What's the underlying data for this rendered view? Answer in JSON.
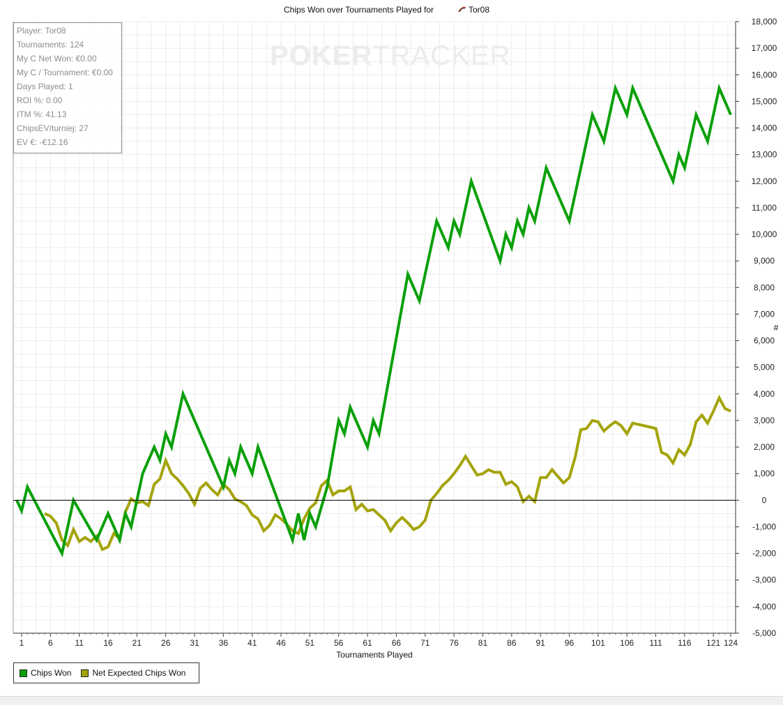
{
  "chart_data": {
    "type": "line",
    "title": "Chips Won over Tournaments Played for",
    "title_player": "Tor08",
    "xlabel": "Tournaments Played",
    "ylabel": "#",
    "xlim": [
      1,
      124
    ],
    "ylim": [
      -5000,
      18000
    ],
    "x_ticks": [
      1,
      6,
      11,
      16,
      21,
      26,
      31,
      36,
      41,
      46,
      51,
      56,
      61,
      66,
      71,
      76,
      81,
      86,
      91,
      96,
      101,
      106,
      111,
      116,
      121,
      124
    ],
    "y_ticks": [
      -5000,
      -4000,
      -3000,
      -2000,
      -1000,
      0,
      1000,
      2000,
      3000,
      4000,
      5000,
      6000,
      7000,
      8000,
      9000,
      10000,
      11000,
      12000,
      13000,
      14000,
      15000,
      16000,
      17000,
      18000
    ],
    "y_tick_labels": [
      "-5,000",
      "-4,000",
      "-3,000",
      "-2,000",
      "-1,000",
      "0",
      "1,000",
      "2,000",
      "3,000",
      "4,000",
      "5,000",
      "6,000",
      "7,000",
      "8,000",
      "9,000",
      "10,000",
      "11,000",
      "12,000",
      "13,000",
      "14,000",
      "15,000",
      "16,000",
      "17,000",
      "18,000"
    ],
    "grid": true,
    "legend_position": "bottom-left",
    "series": [
      {
        "name": "Chips Won",
        "color": "#0aa00a",
        "points": [
          [
            0,
            0
          ],
          [
            1,
            -400
          ],
          [
            2,
            500
          ],
          [
            8,
            -2000
          ],
          [
            10,
            0
          ],
          [
            14,
            -1500
          ],
          [
            16,
            -500
          ],
          [
            18,
            -1500
          ],
          [
            19,
            -500
          ],
          [
            20,
            -1000
          ],
          [
            22,
            1000
          ],
          [
            24,
            2000
          ],
          [
            25,
            1500
          ],
          [
            26,
            2500
          ],
          [
            27,
            2000
          ],
          [
            29,
            4000
          ],
          [
            36,
            500
          ],
          [
            37,
            1500
          ],
          [
            38,
            1000
          ],
          [
            39,
            2000
          ],
          [
            40,
            1500
          ],
          [
            41,
            1000
          ],
          [
            42,
            2000
          ],
          [
            48,
            -1500
          ],
          [
            49,
            -500
          ],
          [
            50,
            -1500
          ],
          [
            51,
            -500
          ],
          [
            52,
            -1000
          ],
          [
            54,
            500
          ],
          [
            56,
            3000
          ],
          [
            57,
            2500
          ],
          [
            58,
            3500
          ],
          [
            61,
            2000
          ],
          [
            62,
            3000
          ],
          [
            63,
            2500
          ],
          [
            68,
            8500
          ],
          [
            70,
            7500
          ],
          [
            73,
            10500
          ],
          [
            75,
            9500
          ],
          [
            76,
            10500
          ],
          [
            77,
            10000
          ],
          [
            79,
            12000
          ],
          [
            84,
            9000
          ],
          [
            85,
            10000
          ],
          [
            86,
            9500
          ],
          [
            87,
            10500
          ],
          [
            88,
            10000
          ],
          [
            89,
            11000
          ],
          [
            90,
            10500
          ],
          [
            92,
            12500
          ],
          [
            96,
            10500
          ],
          [
            100,
            14500
          ],
          [
            102,
            13500
          ],
          [
            104,
            15500
          ],
          [
            106,
            14500
          ],
          [
            107,
            15500
          ],
          [
            114,
            12000
          ],
          [
            115,
            13000
          ],
          [
            116,
            12500
          ],
          [
            118,
            14500
          ],
          [
            120,
            13500
          ],
          [
            122,
            15500
          ],
          [
            124,
            14500
          ]
        ]
      },
      {
        "name": "Net Expected Chips Won",
        "color": "#a4a40c",
        "points": [
          [
            5,
            -500
          ],
          [
            6,
            -600
          ],
          [
            7,
            -850
          ],
          [
            8,
            -1500
          ],
          [
            9,
            -1700
          ],
          [
            10,
            -1100
          ],
          [
            11,
            -1550
          ],
          [
            12,
            -1400
          ],
          [
            13,
            -1550
          ],
          [
            14,
            -1350
          ],
          [
            15,
            -1850
          ],
          [
            16,
            -1750
          ],
          [
            17,
            -1250
          ],
          [
            18,
            -1450
          ],
          [
            19,
            -450
          ],
          [
            20,
            50
          ],
          [
            21,
            -100
          ],
          [
            22,
            -50
          ],
          [
            23,
            -200
          ],
          [
            24,
            600
          ],
          [
            25,
            800
          ],
          [
            26,
            1500
          ],
          [
            27,
            1000
          ],
          [
            28,
            800
          ],
          [
            29,
            550
          ],
          [
            30,
            250
          ],
          [
            31,
            -150
          ],
          [
            32,
            450
          ],
          [
            33,
            650
          ],
          [
            34,
            400
          ],
          [
            35,
            200
          ],
          [
            36,
            600
          ],
          [
            37,
            400
          ],
          [
            38,
            50
          ],
          [
            39,
            -50
          ],
          [
            40,
            -200
          ],
          [
            41,
            -550
          ],
          [
            42,
            -700
          ],
          [
            43,
            -1150
          ],
          [
            44,
            -950
          ],
          [
            45,
            -550
          ],
          [
            46,
            -700
          ],
          [
            47,
            -900
          ],
          [
            48,
            -1150
          ],
          [
            49,
            -1250
          ],
          [
            50,
            -700
          ],
          [
            51,
            -300
          ],
          [
            52,
            -100
          ],
          [
            53,
            550
          ],
          [
            54,
            750
          ],
          [
            55,
            200
          ],
          [
            56,
            350
          ],
          [
            57,
            350
          ],
          [
            58,
            500
          ],
          [
            59,
            -350
          ],
          [
            60,
            -150
          ],
          [
            61,
            -400
          ],
          [
            62,
            -350
          ],
          [
            63,
            -550
          ],
          [
            64,
            -750
          ],
          [
            65,
            -1150
          ],
          [
            66,
            -850
          ],
          [
            67,
            -650
          ],
          [
            68,
            -850
          ],
          [
            69,
            -1100
          ],
          [
            70,
            -1000
          ],
          [
            71,
            -750
          ],
          [
            72,
            0
          ],
          [
            73,
            250
          ],
          [
            74,
            550
          ],
          [
            75,
            750
          ],
          [
            76,
            1000
          ],
          [
            77,
            1300
          ],
          [
            78,
            1650
          ],
          [
            79,
            1300
          ],
          [
            80,
            950
          ],
          [
            81,
            1000
          ],
          [
            82,
            1150
          ],
          [
            83,
            1050
          ],
          [
            84,
            1050
          ],
          [
            85,
            600
          ],
          [
            86,
            700
          ],
          [
            87,
            500
          ],
          [
            88,
            -50
          ],
          [
            89,
            150
          ],
          [
            90,
            -50
          ],
          [
            91,
            850
          ],
          [
            92,
            850
          ],
          [
            93,
            1150
          ],
          [
            94,
            900
          ],
          [
            95,
            650
          ],
          [
            96,
            850
          ],
          [
            97,
            1600
          ],
          [
            98,
            2650
          ],
          [
            99,
            2700
          ],
          [
            100,
            3000
          ],
          [
            101,
            2950
          ],
          [
            102,
            2600
          ],
          [
            103,
            2800
          ],
          [
            104,
            2950
          ],
          [
            105,
            2800
          ],
          [
            106,
            2500
          ],
          [
            107,
            2900
          ],
          [
            108,
            2850
          ],
          [
            109,
            2800
          ],
          [
            110,
            2750
          ],
          [
            111,
            2700
          ],
          [
            112,
            1800
          ],
          [
            113,
            1700
          ],
          [
            114,
            1400
          ],
          [
            115,
            1900
          ],
          [
            116,
            1700
          ],
          [
            117,
            2100
          ],
          [
            118,
            2950
          ],
          [
            119,
            3200
          ],
          [
            120,
            2900
          ],
          [
            121,
            3350
          ],
          [
            122,
            3850
          ],
          [
            123,
            3450
          ],
          [
            124,
            3350
          ]
        ]
      }
    ]
  },
  "stats": {
    "player": "Player: Tor08",
    "tournaments": "Tournaments: 124",
    "net_won": "My C Net Won: €0.00",
    "per_tournament": "My C / Tournament: €0.00",
    "days_played": "Days Played: 1",
    "roi": "ROI %: 0.00",
    "itm": "ITM %: 41.13",
    "chips_ev": "ChipsEV/turniej: 27",
    "ev": "EV €: -€12.16"
  },
  "watermark": {
    "left": "POKER",
    "right": "TRACKER"
  },
  "legend": {
    "chips_won": "Chips Won",
    "net_expected": "Net Expected Chips Won",
    "chips_won_color": "#0aa00a",
    "net_expected_color": "#a4a40c"
  }
}
